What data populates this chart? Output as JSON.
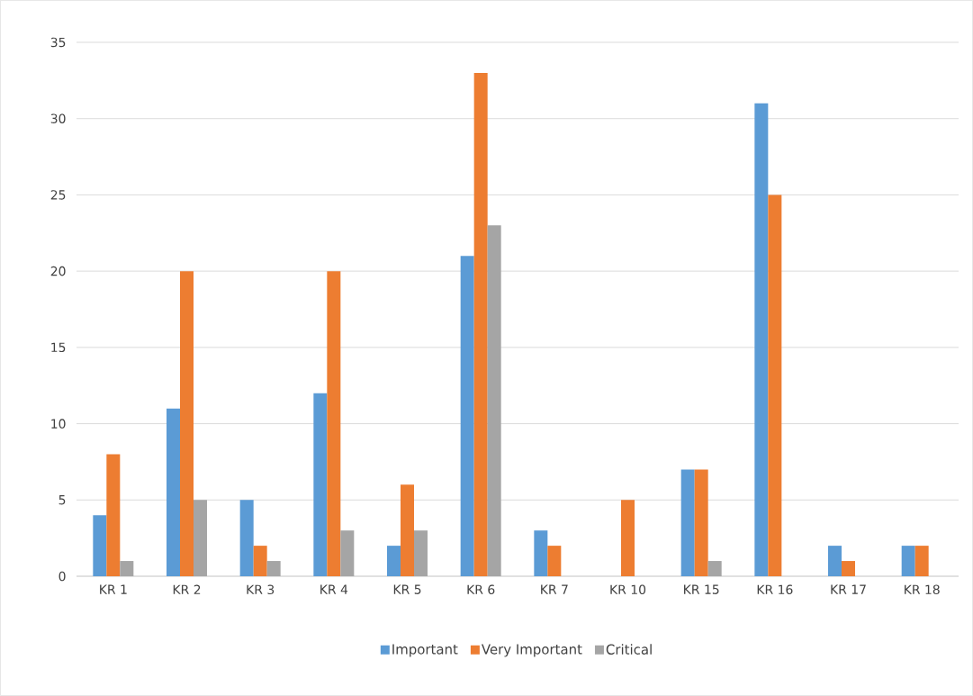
{
  "chart_data": {
    "type": "bar",
    "categories": [
      "KR 1",
      "KR 2",
      "KR 3",
      "KR 4",
      "KR 5",
      "KR 6",
      "KR 7",
      "KR 10",
      "KR 15",
      "KR 16",
      "KR 17",
      "KR 18"
    ],
    "series": [
      {
        "name": "Important",
        "color": "#5b9bd5",
        "values": [
          4,
          11,
          5,
          12,
          2,
          21,
          3,
          0,
          7,
          31,
          2,
          2
        ]
      },
      {
        "name": "Very Important",
        "color": "#ed7d31",
        "values": [
          8,
          20,
          2,
          20,
          6,
          33,
          2,
          5,
          7,
          25,
          1,
          2
        ]
      },
      {
        "name": "Critical",
        "color": "#a5a5a5",
        "values": [
          1,
          5,
          1,
          3,
          3,
          23,
          0,
          0,
          1,
          0,
          0,
          0
        ]
      }
    ],
    "ylim": [
      0,
      35
    ],
    "yticks": [
      0,
      5,
      10,
      15,
      20,
      25,
      30,
      35
    ],
    "grid": "y",
    "legend": "bottom"
  }
}
